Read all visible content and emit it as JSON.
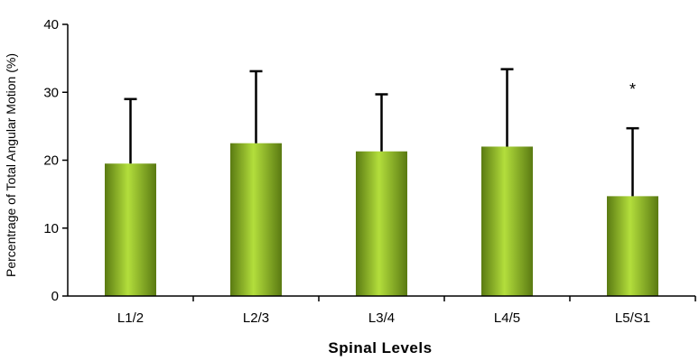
{
  "chart_data": {
    "type": "bar",
    "categories": [
      "L1/2",
      "L2/3",
      "L3/4",
      "L4/5",
      "L5/S1"
    ],
    "values": [
      19.5,
      22.5,
      21.3,
      22.0,
      14.7
    ],
    "error_plus": [
      9.5,
      10.6,
      8.4,
      11.4,
      10.0
    ],
    "xlabel": "Spinal Levels",
    "ylabel": "Percentrage of Total Angular Motion (%)",
    "ylim": [
      0,
      40
    ],
    "yticks": [
      0,
      10,
      20,
      30,
      40
    ],
    "grid": false,
    "legend": "none",
    "annotations": [
      {
        "category": "L5/S1",
        "text": "*"
      }
    ],
    "colors": {
      "bar_center": "#b3de3c",
      "bar_edge": "#5a7a12",
      "axis": "#000000"
    }
  }
}
